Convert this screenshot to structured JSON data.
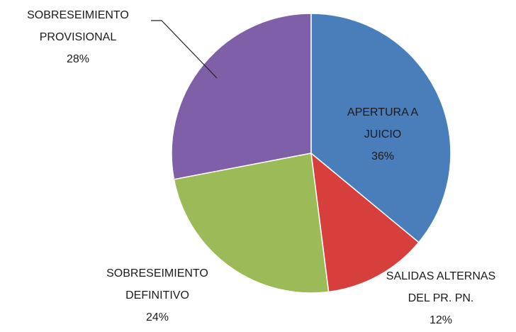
{
  "chart_data": {
    "type": "pie",
    "categories": [
      "APERTURA A JUICIO",
      "SALIDAS ALTERNAS DEL PR. PN.",
      "SOBRESEIMIENTO DEFINITIVO",
      "SOBRESEIMIENTO PROVISIONAL"
    ],
    "values": [
      36,
      12,
      24,
      28
    ],
    "value_labels": [
      "36%",
      "12%",
      "24%",
      "28%"
    ],
    "colors": [
      "#4a7ebb",
      "#d63f3c",
      "#9bbb59",
      "#7f5fa8"
    ]
  }
}
